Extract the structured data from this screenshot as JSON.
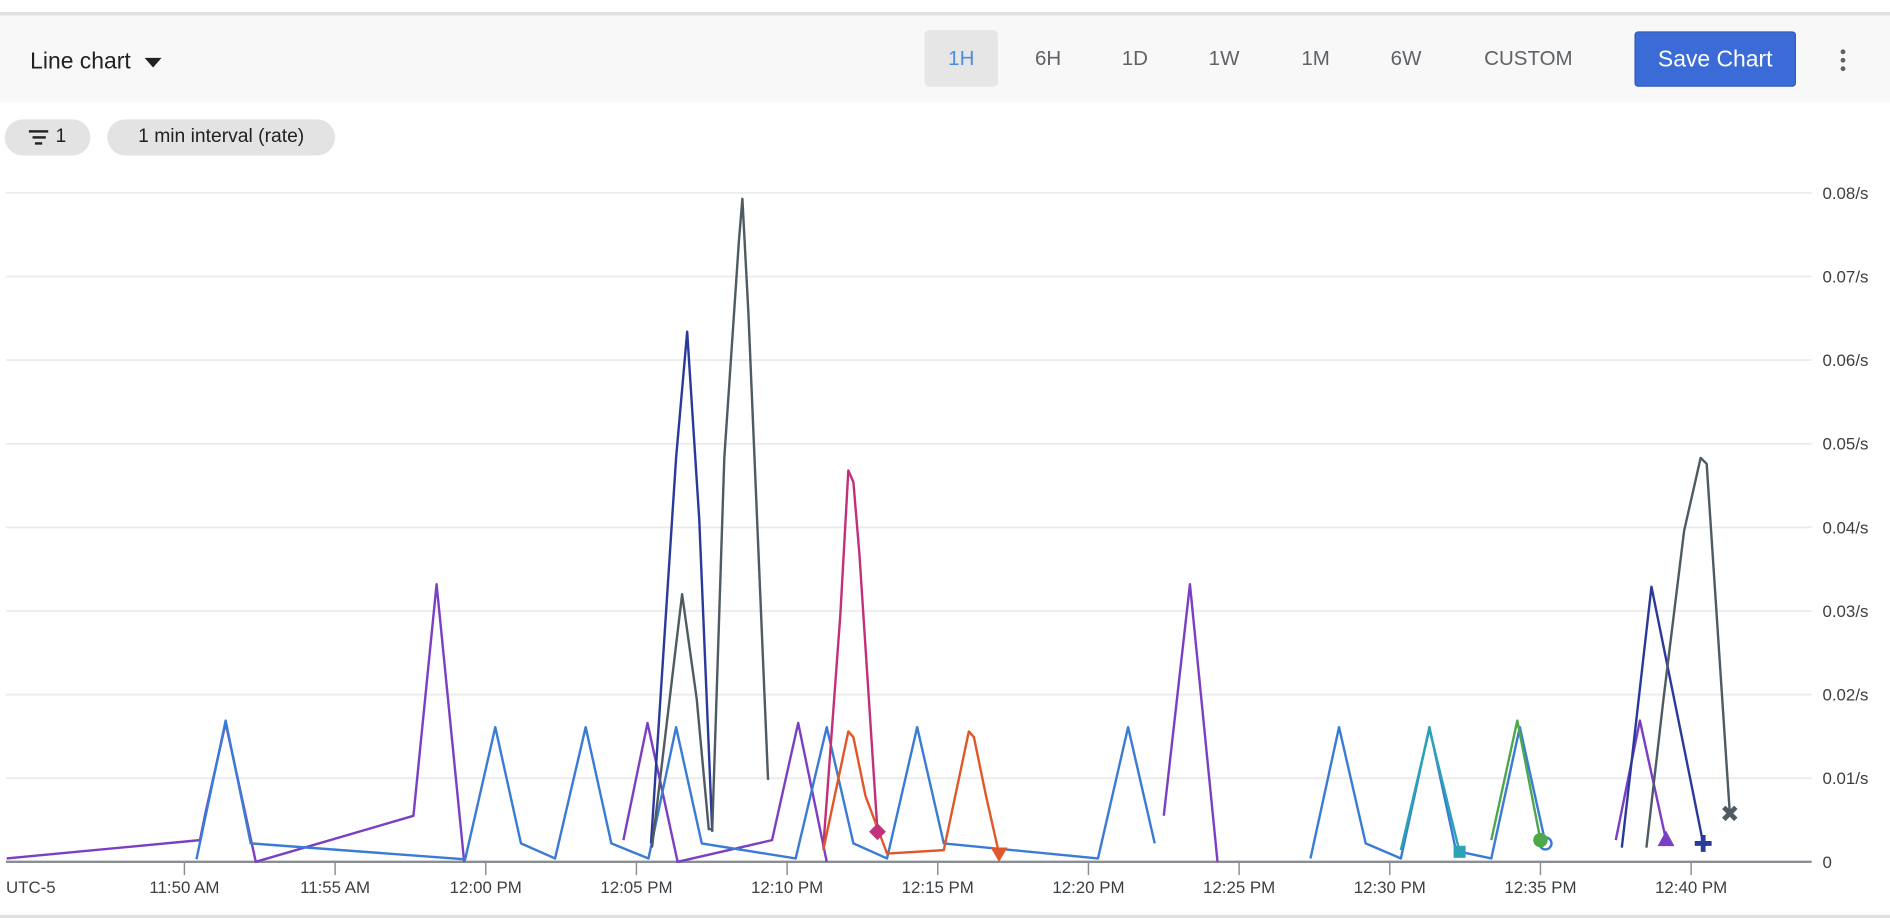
{
  "toolbar": {
    "chart_type": "Line chart",
    "ranges": [
      {
        "label": "1H",
        "active": true
      },
      {
        "label": "6H",
        "active": false
      },
      {
        "label": "1D",
        "active": false
      },
      {
        "label": "1W",
        "active": false
      },
      {
        "label": "1M",
        "active": false
      },
      {
        "label": "6W",
        "active": false
      },
      {
        "label": "CUSTOM",
        "active": false
      }
    ],
    "save_label": "Save Chart",
    "more_icon": "more-vert-icon"
  },
  "chips": {
    "filter_icon": "filter-list-icon",
    "filter_count": "1",
    "interval": "1 min interval (rate)"
  },
  "chart_data": {
    "type": "line",
    "timezone_label": "UTC-5",
    "x_ticks": [
      "11:50 AM",
      "11:55 AM",
      "12:00 PM",
      "12:05 PM",
      "12:10 PM",
      "12:15 PM",
      "12:20 PM",
      "12:25 PM",
      "12:30 PM",
      "12:35 PM",
      "12:40 PM"
    ],
    "y_ticks": [
      "0",
      "0.01/s",
      "0.02/s",
      "0.03/s",
      "0.04/s",
      "0.05/s",
      "0.06/s",
      "0.07/s",
      "0.08/s"
    ],
    "ylim": [
      0,
      0.08
    ],
    "y_unit": "/s",
    "grid": true,
    "series": [
      {
        "color": "#7b3fc4",
        "marker": "triangle",
        "segments": [
          [
            [
              "11:44:06",
              0.0004
            ],
            [
              "11:50:31",
              0.0026
            ],
            [
              "11:50:41",
              0.0056
            ],
            [
              "11:51:22",
              0.0166
            ],
            [
              "11:52:22",
              0
            ],
            [
              "11:57:36",
              0.0055
            ],
            [
              "11:58:22",
              0.0332
            ],
            [
              "11:59:17",
              0
            ]
          ],
          [
            [
              "12:04:34",
              0.0026
            ],
            [
              "12:05:22",
              0.0166
            ],
            [
              "12:06:22",
              0
            ],
            [
              "12:09:30",
              0.0026
            ],
            [
              "12:10:22",
              0.0166
            ],
            [
              "12:11:19",
              0
            ]
          ],
          [
            [
              "12:22:30",
              0.0055
            ],
            [
              "12:23:22",
              0.0332
            ],
            [
              "12:24:17",
              0
            ]
          ],
          [
            [
              "12:37:30",
              0.0026
            ],
            [
              "12:38:18",
              0.0169
            ],
            [
              "12:39:10",
              0.0026
            ]
          ]
        ]
      },
      {
        "color": "#3a7bd5",
        "marker": "circle-outline",
        "segments": [
          [
            [
              "11:50:24",
              0.0003
            ],
            [
              "11:51:22",
              0.0169
            ],
            [
              "11:52:12",
              0.0022
            ],
            [
              "11:59:19",
              0.0003
            ],
            [
              "12:00:19",
              0.0161
            ],
            [
              "12:01:10",
              0.0022
            ],
            [
              "12:02:18",
              0.0004
            ],
            [
              "12:03:19",
              0.0161
            ],
            [
              "12:04:10",
              0.0022
            ],
            [
              "12:05:24",
              0.0004
            ],
            [
              "12:06:19",
              0.0161
            ],
            [
              "12:07:10",
              0.0022
            ],
            [
              "12:10:17",
              0.0004
            ],
            [
              "12:11:19",
              0.0161
            ],
            [
              "12:12:12",
              0.0022
            ],
            [
              "12:13:19",
              0.0004
            ],
            [
              "12:14:19",
              0.0161
            ],
            [
              "12:15:12",
              0.0022
            ],
            [
              "12:20:19",
              0.0004
            ],
            [
              "12:21:19",
              0.0161
            ],
            [
              "12:22:12",
              0.0022
            ]
          ],
          [
            [
              "12:27:22",
              0.0004
            ],
            [
              "12:28:19",
              0.0161
            ],
            [
              "12:29:12",
              0.0022
            ],
            [
              "12:30:22",
              0.0004
            ],
            [
              "12:31:19",
              0.0161
            ],
            [
              "12:32:12",
              0.0013
            ],
            [
              "12:33:22",
              0.0004
            ],
            [
              "12:34:19",
              0.0161
            ],
            [
              "12:35:10",
              0.0022
            ]
          ]
        ]
      },
      {
        "color": "#2a3a9a",
        "marker": "plus",
        "segments": [
          [
            [
              "12:05:29",
              0.0022
            ],
            [
              "12:06:19",
              0.0483
            ],
            [
              "12:06:41",
              0.0634
            ],
            [
              "12:07:05",
              0.041
            ],
            [
              "12:07:31",
              0.0036
            ]
          ],
          [
            [
              "12:37:42",
              0.0017
            ],
            [
              "12:38:41",
              0.0329
            ],
            [
              "12:39:48",
              0.013
            ],
            [
              "12:40:24",
              0.0022
            ]
          ]
        ]
      },
      {
        "color": "#4f5b62",
        "marker": "x",
        "segments": [
          [
            [
              "12:05:31",
              0.0017
            ],
            [
              "12:06:31",
              0.032
            ],
            [
              "12:07:00",
              0.0195
            ],
            [
              "12:07:24",
              0.0039
            ],
            [
              "12:07:31",
              0.0039
            ],
            [
              "12:07:55",
              0.0483
            ],
            [
              "12:08:24",
              0.0742
            ],
            [
              "12:08:31",
              0.0793
            ],
            [
              "12:08:43",
              0.0656
            ],
            [
              "12:09:22",
              0.0098
            ]
          ],
          [
            [
              "12:38:31",
              0.0017
            ],
            [
              "12:39:05",
              0.0195
            ],
            [
              "12:39:46",
              0.0396
            ],
            [
              "12:40:19",
              0.0483
            ],
            [
              "12:40:31",
              0.0476
            ],
            [
              "12:41:17",
              0.0058
            ]
          ]
        ]
      },
      {
        "color": "#c2307a",
        "marker": "diamond",
        "segments": [
          [
            [
              "12:11:12",
              0.0017
            ],
            [
              "12:11:46",
              0.0296
            ],
            [
              "12:12:02",
              0.0468
            ],
            [
              "12:12:12",
              0.0454
            ],
            [
              "12:12:24",
              0.0368
            ],
            [
              "12:13:00",
              0.0036
            ]
          ]
        ]
      },
      {
        "color": "#e0582a",
        "marker": "triangle-down",
        "segments": [
          [
            [
              "12:11:12",
              0.0014
            ],
            [
              "12:12:02",
              0.0156
            ],
            [
              "12:12:12",
              0.0149
            ],
            [
              "12:12:36",
              0.0079
            ],
            [
              "12:13:19",
              0.001
            ],
            [
              "12:15:12",
              0.0014
            ],
            [
              "12:16:02",
              0.0156
            ],
            [
              "12:16:12",
              0.0149
            ],
            [
              "12:16:36",
              0.0079
            ],
            [
              "12:17:02",
              0.001
            ]
          ]
        ]
      },
      {
        "color": "#2ba3b4",
        "marker": "square",
        "segments": [
          [
            [
              "12:30:22",
              0.0014
            ],
            [
              "12:31:19",
              0.0159
            ],
            [
              "12:32:19",
              0.0012
            ]
          ]
        ]
      },
      {
        "color": "#4fa84a",
        "marker": "circle",
        "segments": [
          [
            [
              "12:33:22",
              0.0026
            ],
            [
              "12:34:14",
              0.0169
            ],
            [
              "12:35:00",
              0.0026
            ]
          ]
        ]
      }
    ]
  }
}
